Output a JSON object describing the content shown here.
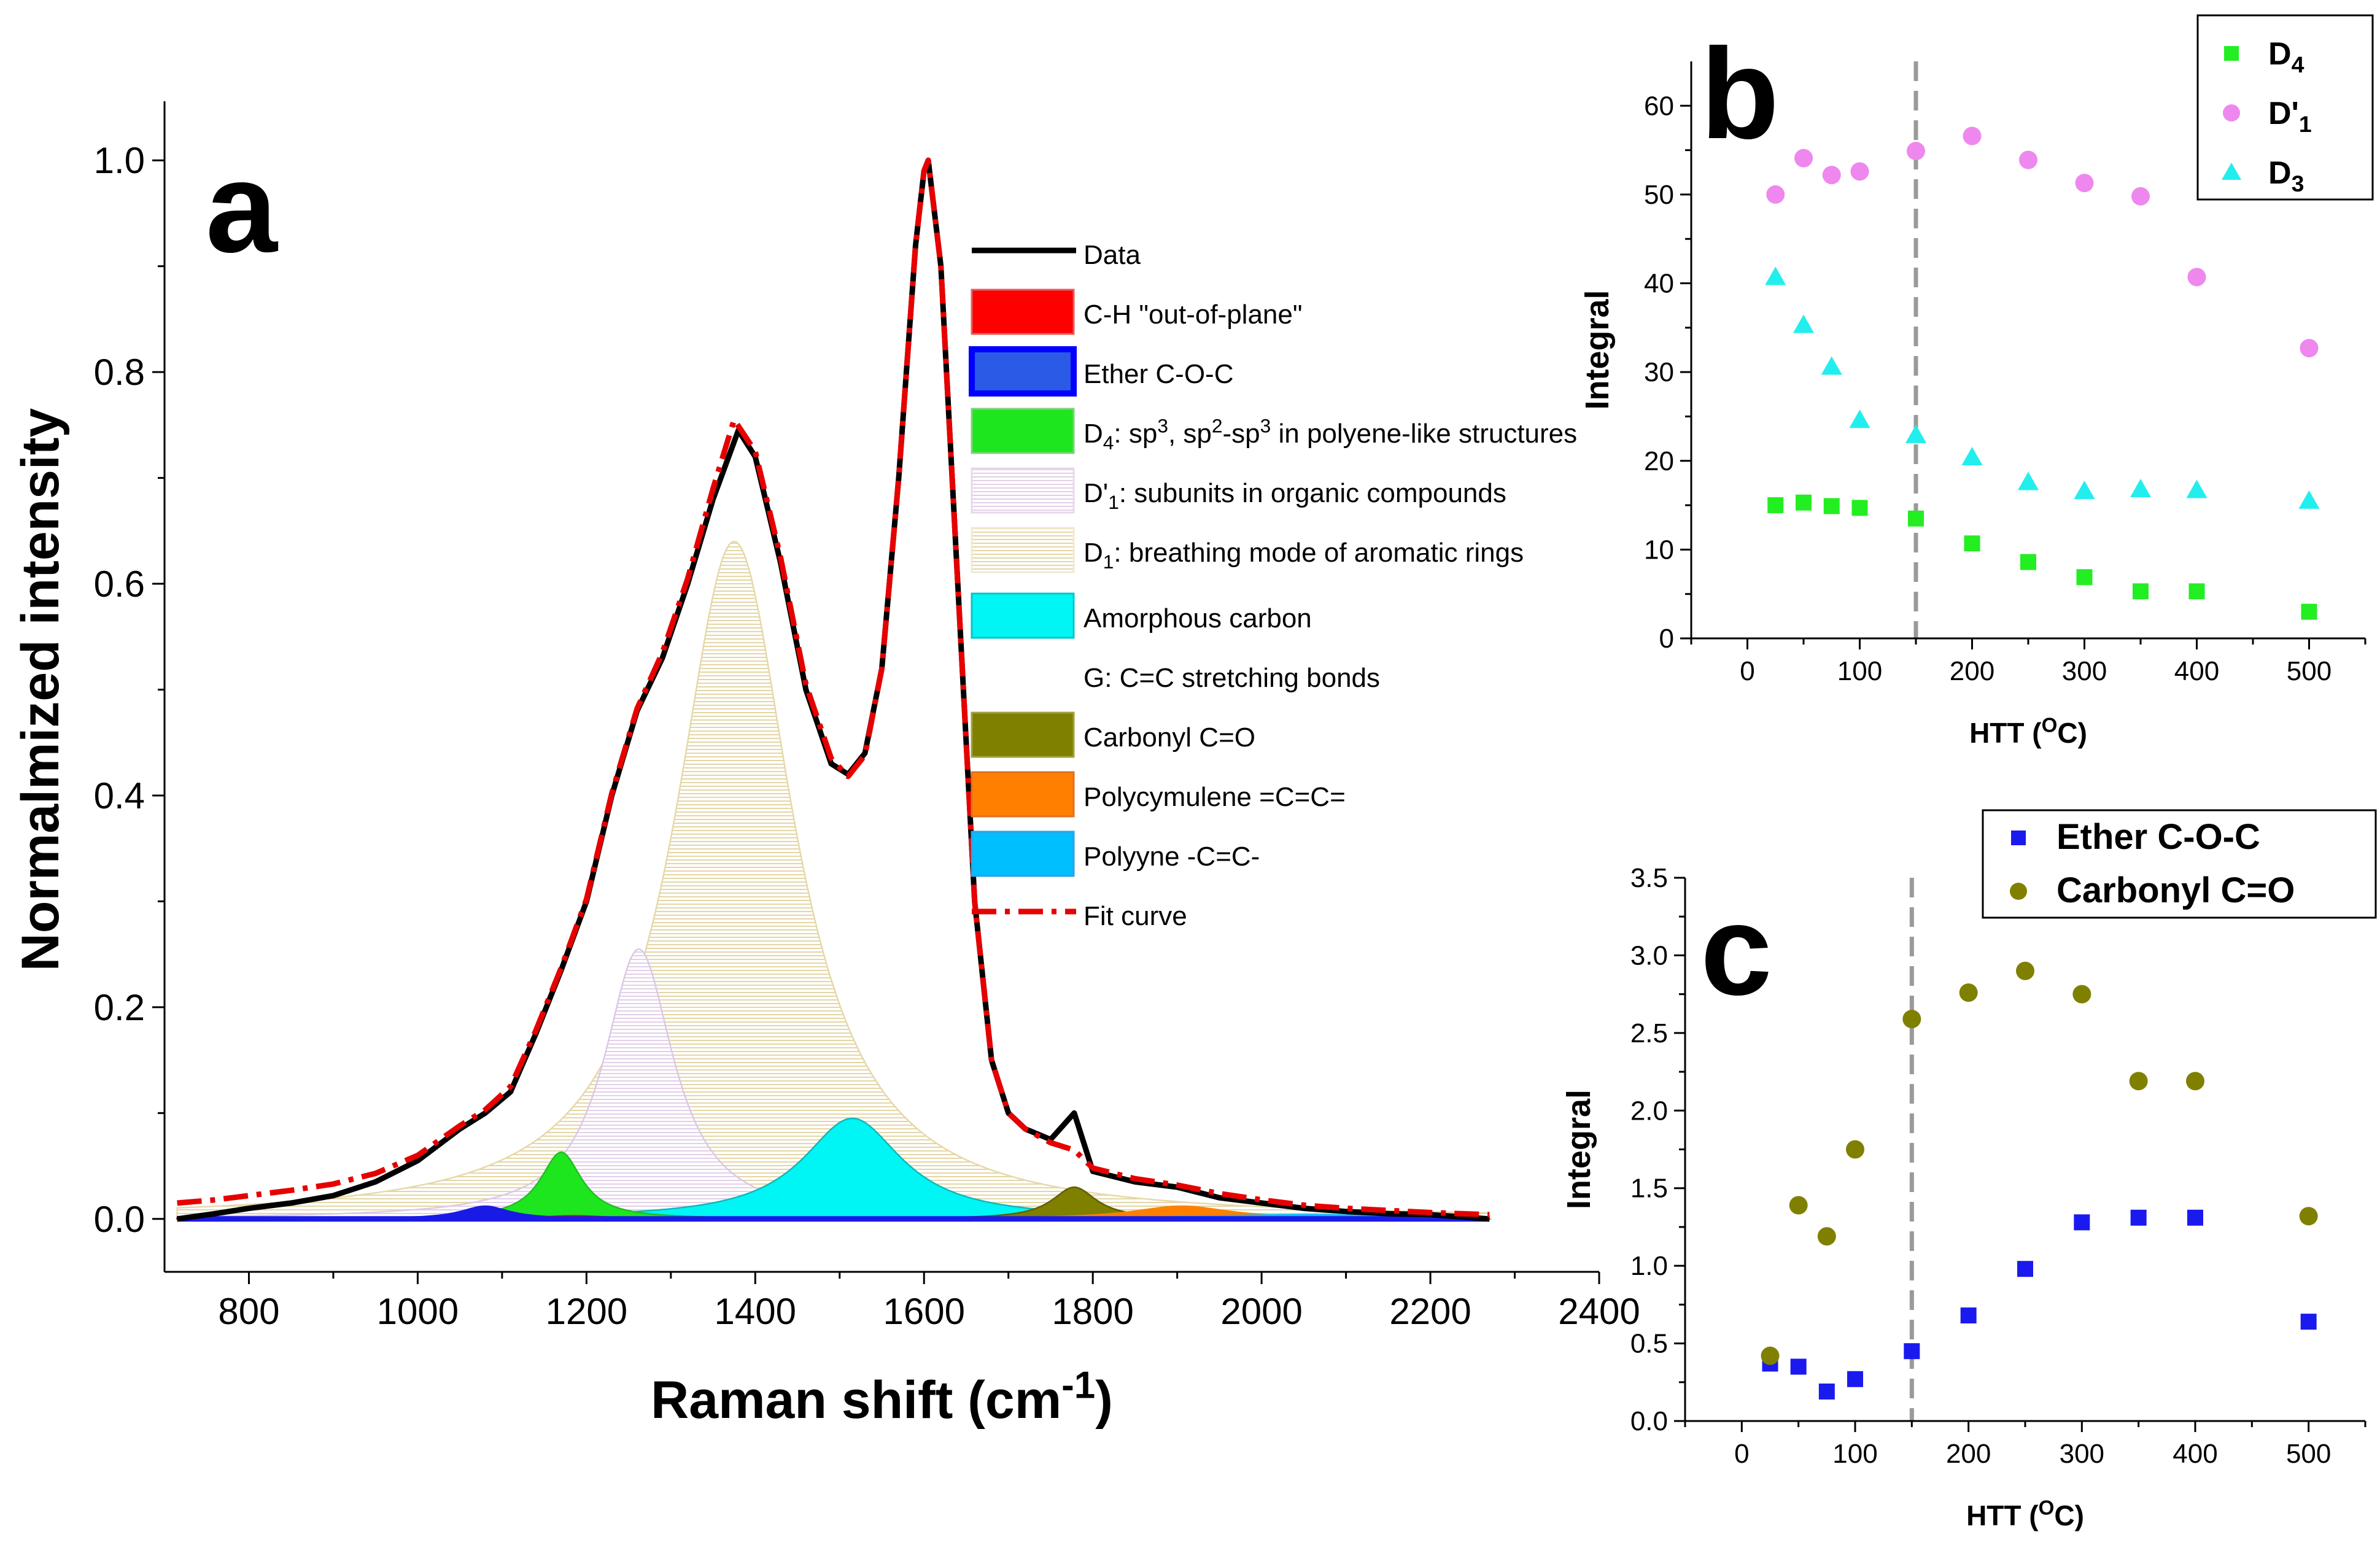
{
  "chart_data": [
    {
      "id": "a",
      "type": "line",
      "panel_label": "a",
      "xlabel": "Raman shift (cm",
      "xlabel_sup": "-1",
      "xlabel_end": ")",
      "ylabel": "Normalmized intensity",
      "xlim": [
        700,
        2400
      ],
      "ylim": [
        -0.05,
        1.05
      ],
      "xticks": [
        800,
        1000,
        1200,
        1400,
        1600,
        1800,
        2000,
        2200,
        2400
      ],
      "yticks": [
        0.0,
        0.2,
        0.4,
        0.6,
        0.8,
        1.0
      ],
      "ytick_labels": [
        "0.0",
        "0.2",
        "0.4",
        "0.6",
        "0.8",
        "1.0"
      ],
      "data_range": [
        715,
        2270
      ],
      "components": [
        {
          "key": "ch",
          "name": "C-H \"out-of-plane\"",
          "center": 1185,
          "amp": 0.003,
          "width": 50,
          "color": "#ff0000"
        },
        {
          "key": "ether",
          "name": "Ether C-O-C",
          "center": 1080,
          "amp": 0.012,
          "width": 35,
          "color": "#1a1ae6"
        },
        {
          "key": "d4",
          "name_pre": "D",
          "name_sub": "4",
          "name_post": ": sp",
          "name_sup1": "3",
          "name_mid": ", sp",
          "name_sup2": "2",
          "name_mid2": "-sp",
          "name_sup3": "3",
          "name_end": " in polyene-like structures",
          "center": 1170,
          "amp": 0.063,
          "width": 30,
          "color": "#1ee61e"
        },
        {
          "key": "d1p",
          "name_pre": "D'",
          "name_sub": "1",
          "name_post": ": subunits in organic compounds",
          "center": 1262,
          "amp": 0.255,
          "width": 50,
          "color": "#e8d8ec"
        },
        {
          "key": "d1",
          "name_pre": "D",
          "name_sub": "1",
          "name_post": ": breathing mode of aromatic rings",
          "center": 1375,
          "amp": 0.64,
          "width": 85,
          "color": "#e8ddb5"
        },
        {
          "key": "am",
          "name": "Amorphous carbon",
          "center": 1515,
          "amp": 0.095,
          "width": 72,
          "color": "#00f5f5"
        },
        {
          "key": "g",
          "name": "G: C=C stretching bonds",
          "center": 1603,
          "amp": 0.0,
          "width": 40,
          "color": "#ffffff"
        },
        {
          "key": "co",
          "name": "Carbonyl C=O",
          "center": 1778,
          "amp": 0.03,
          "width": 32,
          "color": "#7f7f00"
        },
        {
          "key": "poly",
          "name": "Polycymulene =C=C=",
          "center": 1905,
          "amp": 0.012,
          "width": 70,
          "color": "#ff8000"
        },
        {
          "key": "polyyne",
          "name": "Polyyne -C=C-",
          "center": 2050,
          "amp": 0.004,
          "width": 150,
          "color": "#00bfff"
        }
      ],
      "data_series": {
        "name": "Data",
        "color": "#000000",
        "x": [
          715,
          760,
          800,
          850,
          900,
          950,
          1000,
          1050,
          1080,
          1110,
          1140,
          1170,
          1200,
          1230,
          1260,
          1290,
          1320,
          1350,
          1380,
          1400,
          1430,
          1460,
          1490,
          1510,
          1530,
          1550,
          1570,
          1590,
          1600,
          1605,
          1620,
          1640,
          1660,
          1680,
          1700,
          1720,
          1750,
          1778,
          1800,
          1850,
          1900,
          1950,
          2000,
          2050,
          2100,
          2150,
          2200,
          2270
        ],
        "y": [
          0.0,
          0.005,
          0.01,
          0.015,
          0.022,
          0.035,
          0.055,
          0.085,
          0.1,
          0.12,
          0.175,
          0.235,
          0.3,
          0.4,
          0.48,
          0.53,
          0.6,
          0.68,
          0.745,
          0.72,
          0.62,
          0.5,
          0.43,
          0.42,
          0.44,
          0.52,
          0.7,
          0.92,
          0.99,
          1.0,
          0.9,
          0.6,
          0.3,
          0.15,
          0.1,
          0.085,
          0.075,
          0.1,
          0.045,
          0.035,
          0.03,
          0.02,
          0.015,
          0.01,
          0.007,
          0.005,
          0.004,
          0.0
        ]
      },
      "fit_series": {
        "name": "Fit curve",
        "color": "#e60000",
        "x": [
          715,
          760,
          800,
          850,
          900,
          950,
          1000,
          1050,
          1080,
          1110,
          1140,
          1170,
          1200,
          1230,
          1260,
          1290,
          1320,
          1350,
          1375,
          1400,
          1430,
          1460,
          1490,
          1510,
          1530,
          1550,
          1570,
          1590,
          1600,
          1605,
          1620,
          1640,
          1660,
          1680,
          1700,
          1720,
          1750,
          1778,
          1800,
          1850,
          1900,
          1950,
          2000,
          2050,
          2100,
          2150,
          2200,
          2270
        ],
        "y": [
          0.015,
          0.018,
          0.022,
          0.027,
          0.033,
          0.043,
          0.06,
          0.088,
          0.103,
          0.125,
          0.178,
          0.237,
          0.302,
          0.402,
          0.482,
          0.535,
          0.605,
          0.69,
          0.755,
          0.725,
          0.625,
          0.505,
          0.435,
          0.418,
          0.438,
          0.52,
          0.7,
          0.92,
          0.99,
          1.0,
          0.9,
          0.6,
          0.3,
          0.15,
          0.1,
          0.085,
          0.072,
          0.065,
          0.048,
          0.038,
          0.032,
          0.024,
          0.018,
          0.013,
          0.01,
          0.008,
          0.006,
          0.004
        ]
      },
      "legend": [
        {
          "key": "data",
          "type": "line",
          "label": "Data",
          "color": "#000000"
        },
        {
          "key": "ch",
          "type": "patch",
          "label": "C-H \"out-of-plane\"",
          "color": "#ff0000",
          "edge": "#e06060"
        },
        {
          "key": "ether",
          "type": "patch",
          "label": "Ether C-O-C",
          "color": "#2a5ae6",
          "edge": "#0000ff"
        },
        {
          "key": "d4",
          "type": "patch",
          "label_parts": [
            [
              "D",
              ""
            ],
            [
              "4",
              "sub"
            ],
            [
              ": sp",
              ""
            ],
            [
              "3",
              "sup"
            ],
            [
              ", sp",
              ""
            ],
            [
              "2",
              "sup"
            ],
            [
              "-sp",
              ""
            ],
            [
              "3",
              "sup"
            ],
            [
              " in polyene-like structures",
              ""
            ]
          ],
          "color": "#1ee61e",
          "edge": "#7fd07f"
        },
        {
          "key": "d1p",
          "type": "patch",
          "label_parts": [
            [
              "D'",
              ""
            ],
            [
              "1",
              "sub"
            ],
            [
              ": subunits in organic compounds",
              ""
            ]
          ],
          "color": "#f3ecf6",
          "edge": "#e8d8ec"
        },
        {
          "key": "d1",
          "type": "patch",
          "label_parts": [
            [
              "D",
              ""
            ],
            [
              "1",
              "sub"
            ],
            [
              ": breathing mode of aromatic rings",
              ""
            ]
          ],
          "color": "#f1ead0",
          "edge": "#f1ead0"
        },
        {
          "key": "am",
          "type": "patch",
          "label": "Amorphous carbon",
          "color": "#00f5f5",
          "edge": "#00c8c8"
        },
        {
          "key": "g",
          "type": "none",
          "label": "G: C=C stretching bonds",
          "color": "#ffffff"
        },
        {
          "key": "co",
          "type": "patch",
          "label": "Carbonyl C=O",
          "color": "#7f7f00",
          "edge": "#a0a040"
        },
        {
          "key": "poly",
          "type": "patch",
          "label": "Polycymulene =C=C=",
          "color": "#ff8000",
          "edge": "#e07020"
        },
        {
          "key": "polyyne",
          "type": "patch",
          "label": "Polyyne -C=C-",
          "color": "#00bfff",
          "edge": "#30a0e0"
        },
        {
          "key": "fit",
          "type": "dash",
          "label": "Fit curve",
          "color": "#e60000"
        }
      ]
    },
    {
      "id": "b",
      "type": "scatter",
      "panel_label": "b",
      "xlabel": "HTT (",
      "xlabel_sup": "O",
      "xlabel_end": "C)",
      "ylabel": "Integral",
      "xlim": [
        -50,
        550
      ],
      "ylim": [
        0,
        65
      ],
      "xticks": [
        0,
        100,
        200,
        300,
        400,
        500
      ],
      "yticks": [
        0,
        10,
        20,
        30,
        40,
        50,
        60
      ],
      "vline": 150,
      "series": [
        {
          "name": "D",
          "sub": "4",
          "marker": "square",
          "color": "#22ee22",
          "x": [
            25,
            50,
            75,
            100,
            150,
            200,
            250,
            300,
            350,
            400,
            500
          ],
          "y": [
            15.0,
            15.3,
            14.9,
            14.7,
            13.5,
            10.7,
            8.6,
            6.9,
            5.3,
            5.3,
            3.0
          ]
        },
        {
          "name": "D'",
          "sub": "1",
          "marker": "circle",
          "color": "#ee88ee",
          "x": [
            25,
            50,
            75,
            100,
            150,
            200,
            250,
            300,
            350,
            400,
            500
          ],
          "y": [
            50.0,
            54.1,
            52.2,
            52.6,
            54.9,
            56.6,
            53.9,
            51.3,
            49.8,
            40.7,
            32.7
          ]
        },
        {
          "name": "D",
          "sub": "3",
          "marker": "triangle",
          "color": "#22eeee",
          "x": [
            25,
            50,
            75,
            100,
            150,
            200,
            250,
            300,
            350,
            400,
            500
          ],
          "y": [
            40.7,
            35.3,
            30.6,
            24.6,
            22.9,
            20.4,
            17.6,
            16.6,
            16.8,
            16.7,
            15.5
          ]
        }
      ]
    },
    {
      "id": "c",
      "type": "scatter",
      "panel_label": "c",
      "xlabel": "HTT (",
      "xlabel_sup": "O",
      "xlabel_end": "C)",
      "ylabel": "Integral",
      "xlim": [
        -50,
        550
      ],
      "ylim": [
        0,
        3.5
      ],
      "xticks": [
        0,
        100,
        200,
        300,
        400,
        500
      ],
      "yticks": [
        0.0,
        0.5,
        1.0,
        1.5,
        2.0,
        2.5,
        3.0,
        3.5
      ],
      "ytick_labels": [
        "0.0",
        "0.5",
        "1.0",
        "1.5",
        "2.0",
        "2.5",
        "3.0",
        "3.5"
      ],
      "vline": 150,
      "series": [
        {
          "name": "Ether C-O-C",
          "marker": "square",
          "color": "#1a1aee",
          "x": [
            25,
            50,
            75,
            100,
            150,
            200,
            250,
            300,
            350,
            400,
            500
          ],
          "y": [
            0.37,
            0.35,
            0.19,
            0.27,
            0.45,
            0.68,
            0.98,
            1.28,
            1.31,
            1.31,
            0.64
          ]
        },
        {
          "name": "Carbonyl C=O",
          "marker": "circle",
          "color": "#808000",
          "x": [
            25,
            50,
            75,
            100,
            150,
            200,
            250,
            300,
            350,
            400,
            500
          ],
          "y": [
            0.42,
            1.39,
            1.19,
            1.75,
            2.59,
            2.76,
            2.9,
            2.75,
            2.19,
            2.19,
            1.32
          ]
        }
      ]
    }
  ]
}
